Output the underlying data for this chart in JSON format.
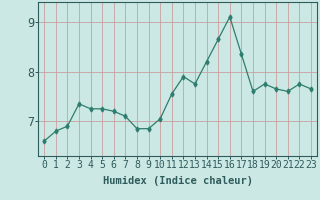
{
  "x": [
    0,
    1,
    2,
    3,
    4,
    5,
    6,
    7,
    8,
    9,
    10,
    11,
    12,
    13,
    14,
    15,
    16,
    17,
    18,
    19,
    20,
    21,
    22,
    23
  ],
  "y": [
    6.6,
    6.8,
    6.9,
    7.35,
    7.25,
    7.25,
    7.2,
    7.1,
    6.85,
    6.85,
    7.05,
    7.55,
    7.9,
    7.75,
    8.2,
    8.65,
    9.1,
    8.35,
    7.6,
    7.75,
    7.65,
    7.6,
    7.75,
    7.65
  ],
  "line_color": "#2e7d6e",
  "marker": "d",
  "marker_size": 2.5,
  "xlabel": "Humidex (Indice chaleur)",
  "xlim": [
    -0.5,
    23.5
  ],
  "ylim": [
    6.3,
    9.4
  ],
  "yticks": [
    7,
    8,
    9
  ],
  "xticks": [
    0,
    1,
    2,
    3,
    4,
    5,
    6,
    7,
    8,
    9,
    10,
    11,
    12,
    13,
    14,
    15,
    16,
    17,
    18,
    19,
    20,
    21,
    22,
    23
  ],
  "bg_color": "#cce8e4",
  "grid_color": "#c8a0a0",
  "tick_color": "#2e5b5b",
  "xlabel_fontsize": 7.5,
  "tick_fontsize": 7.0,
  "ytick_fontsize": 8.5
}
